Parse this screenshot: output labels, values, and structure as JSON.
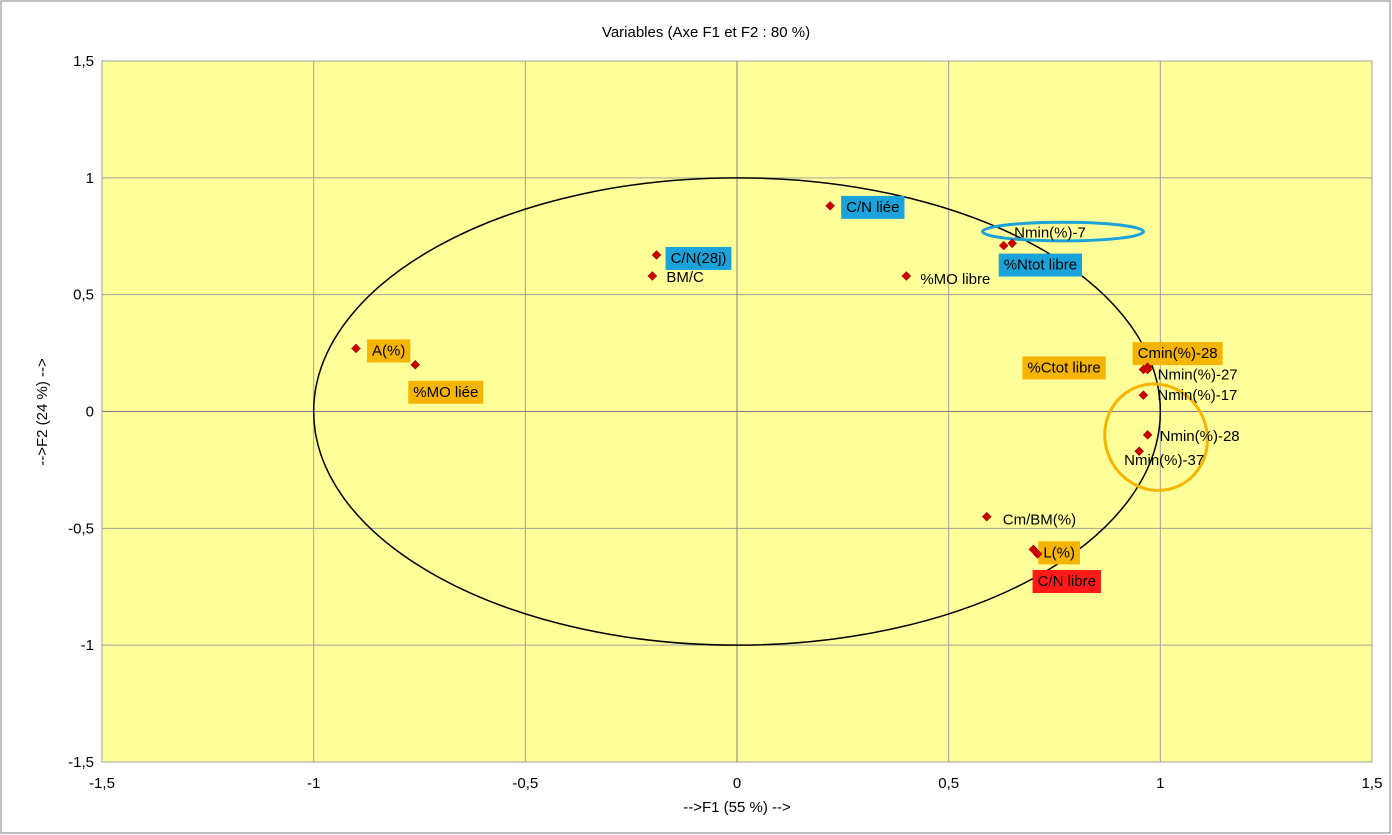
{
  "chart_data": {
    "type": "scatter",
    "title": "Variables (Axe F1 et F2 : 80 %)",
    "xlabel": "-->F1 (55 %) -->",
    "ylabel": "-->F2 (24 %) -->",
    "xlim": [
      -1.5,
      1.5
    ],
    "ylim": [
      -1.5,
      1.5
    ],
    "xticks": [
      "-1,5",
      "-1",
      "-0,5",
      "0",
      "0,5",
      "1",
      "1,5"
    ],
    "yticks": [
      "1,5",
      "1",
      "0,5",
      "0",
      "-0,5",
      "-1",
      "-1,5"
    ],
    "grid": true,
    "plot_background": "#FFFF99",
    "marker_color": "#CC0000",
    "circle_color": "#000000",
    "highlight_colors": {
      "blue": "#1AA3DB",
      "orange": "#F5B400",
      "red": "#FF1A1A"
    },
    "points": [
      {
        "label": "C/N liée",
        "x": 0.22,
        "y": 0.88,
        "highlight": "blue"
      },
      {
        "label": "Nmin(%)-7",
        "x": 0.65,
        "y": 0.72,
        "highlight": "none"
      },
      {
        "label": "%Ntot libre",
        "x": 0.63,
        "y": 0.71,
        "highlight": "blue"
      },
      {
        "label": "C/N(28j)",
        "x": -0.19,
        "y": 0.67,
        "highlight": "blue"
      },
      {
        "label": "BM/C",
        "x": -0.2,
        "y": 0.58,
        "highlight": "none"
      },
      {
        "label": "%MO libre",
        "x": 0.4,
        "y": 0.58,
        "highlight": "none"
      },
      {
        "label": "A(%)",
        "x": -0.9,
        "y": 0.27,
        "highlight": "orange"
      },
      {
        "label": "%MO liée",
        "x": -0.76,
        "y": 0.2,
        "highlight": "orange"
      },
      {
        "label": "Cmin(%)-28",
        "x": 0.97,
        "y": 0.19,
        "highlight": "orange"
      },
      {
        "label": "%Ctot libre",
        "x": 0.96,
        "y": 0.18,
        "highlight": "orange"
      },
      {
        "label": "Nmin(%)-27",
        "x": 0.97,
        "y": 0.18,
        "highlight": "none"
      },
      {
        "label": "Nmin(%)-17",
        "x": 0.96,
        "y": 0.07,
        "highlight": "none"
      },
      {
        "label": "Nmin(%)-28",
        "x": 0.97,
        "y": -0.1,
        "highlight": "none"
      },
      {
        "label": "Nmin(%)-37",
        "x": 0.95,
        "y": -0.17,
        "highlight": "none"
      },
      {
        "label": "Cm/BM(%)",
        "x": 0.59,
        "y": -0.45,
        "highlight": "none"
      },
      {
        "label": "L(%)",
        "x": 0.7,
        "y": -0.59,
        "highlight": "orange"
      },
      {
        "label": "C/N libre",
        "x": 0.71,
        "y": -0.61,
        "highlight": "red"
      }
    ],
    "annotations": [
      {
        "shape": "circle",
        "name": "correlation-circle",
        "cx": 0,
        "cy": 0,
        "r": 1,
        "color": "#000000"
      },
      {
        "shape": "ellipse",
        "name": "blue-highlight-ellipse",
        "cx": 0.77,
        "cy": 0.77,
        "rx": 0.19,
        "ry": 0.04,
        "color": "#1AA3DB"
      },
      {
        "shape": "ellipse",
        "name": "orange-highlight-ellipse",
        "cx": 0.99,
        "cy": -0.11,
        "rx": 0.12,
        "ry": 0.23,
        "color": "#F5B400"
      }
    ]
  }
}
